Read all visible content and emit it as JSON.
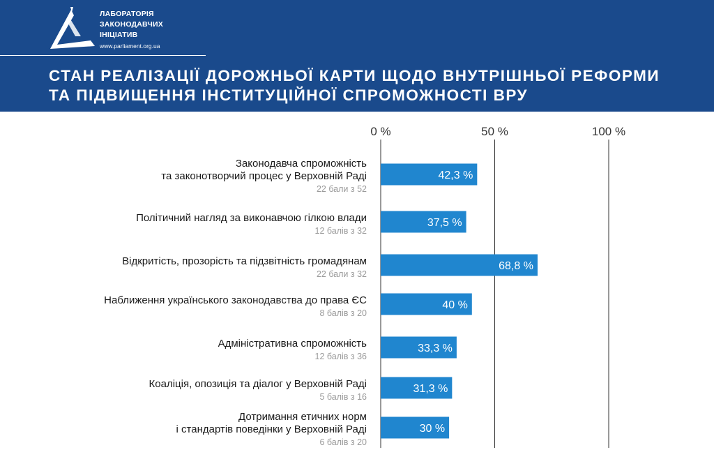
{
  "header": {
    "org_name": [
      "ЛАБОРАТОРІЯ",
      "ЗАКОНОДАВЧИХ",
      "ІНІЦІАТИВ"
    ],
    "url": "www.parliament.org.ua",
    "bg_color": "#1a4a8c",
    "logo_icon": "parliament-logo-icon"
  },
  "title": {
    "line1": "СТАН РЕАЛІЗАЦІЇ ДОРОЖНЬОЇ КАРТИ ЩОДО ВНУТРІШНЬОЇ РЕФОРМИ",
    "line2": "ТА ПІДВИЩЕННЯ ІНСТИТУЦІЙНОЇ СПРОМОЖНОСТІ ВРУ"
  },
  "chart_data": {
    "type": "bar",
    "orientation": "horizontal",
    "title": "СТАН РЕАЛІЗАЦІЇ ДОРОЖНЬОЇ КАРТИ ЩОДО ВНУТРІШНЬОЇ РЕФОРМИ ТА ПІДВИЩЕННЯ ІНСТИТУЦІЙНОЇ СПРОМОЖНОСТІ ВРУ",
    "xlim": [
      0,
      100
    ],
    "ticks": [
      {
        "value": 0,
        "label": "0 %"
      },
      {
        "value": 50,
        "label": "50 %"
      },
      {
        "value": 100,
        "label": "100 %"
      }
    ],
    "grid": true,
    "bar_color": "#2086cf",
    "categories": [
      {
        "label_lines": [
          "Законодавча спроможність",
          "та законотворчий процес у Верховній Раді"
        ],
        "sub": "22 бали з 52",
        "value": 42.3,
        "value_label": "42,3 %"
      },
      {
        "label_lines": [
          "Політичний нагляд за виконавчою гілкою влади"
        ],
        "sub": "12 балів з 32",
        "value": 37.5,
        "value_label": "37,5 %"
      },
      {
        "label_lines": [
          "Відкритість, прозорість та підзвітність громадянам"
        ],
        "sub": "22 бали з 32",
        "value": 68.8,
        "value_label": "68,8 %"
      },
      {
        "label_lines": [
          "Наближення українського законодавства до права ЄС"
        ],
        "sub": "8 балів з 20",
        "value": 40,
        "value_label": "40 %"
      },
      {
        "label_lines": [
          "Адміністративна спроможність"
        ],
        "sub": "12 балів з 36",
        "value": 33.3,
        "value_label": "33,3 %"
      },
      {
        "label_lines": [
          "Коаліція, опозиція та діалог у Верховній Раді"
        ],
        "sub": "5 балів з 16",
        "value": 31.3,
        "value_label": "31,3 %"
      },
      {
        "label_lines": [
          "Дотримання етичних норм",
          "і стандартів поведінки у Верховній Раді"
        ],
        "sub": "6 балів з 20",
        "value": 30,
        "value_label": "30 %"
      }
    ]
  }
}
